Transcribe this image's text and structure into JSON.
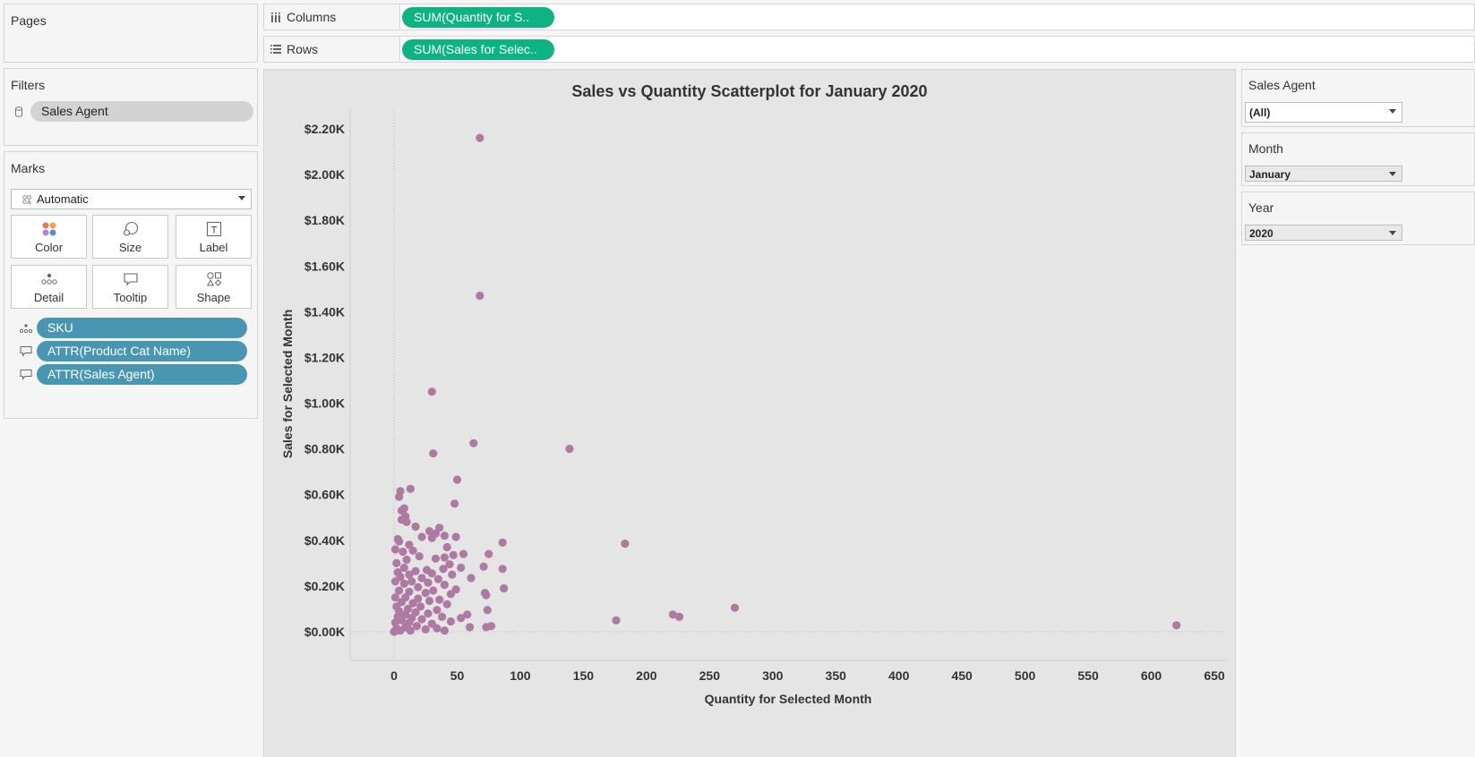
{
  "pages": {
    "title": "Pages"
  },
  "filters": {
    "title": "Filters",
    "items": [
      "Sales Agent"
    ]
  },
  "marks": {
    "title": "Marks",
    "type": "Automatic",
    "buttons": [
      "Color",
      "Size",
      "Label",
      "Detail",
      "Tooltip",
      "Shape"
    ],
    "fields": [
      "SKU",
      "ATTR(Product Cat Name)",
      "ATTR(Sales Agent)"
    ]
  },
  "shelves": {
    "columns_label": "Columns",
    "columns_pill": "SUM(Quantity for S..",
    "rows_label": "Rows",
    "rows_pill": "SUM(Sales for Selec.."
  },
  "quick_filters": [
    {
      "title": "Sales Agent",
      "value": "(All)"
    },
    {
      "title": "Month",
      "value": "January"
    },
    {
      "title": "Year",
      "value": "2020"
    }
  ],
  "colors": {
    "mark": "#ae7aa1",
    "pill_blue": "#4996b2",
    "pill_green": "#0db481",
    "plot_bg": "#e5e5e5"
  },
  "icons": [
    "columns-icon",
    "rows-icon",
    "database-icon",
    "automatic-marks-icon",
    "color-icon",
    "size-icon",
    "label-icon",
    "detail-icon",
    "tooltip-icon",
    "shape-icon"
  ],
  "chart_data": {
    "type": "scatter",
    "title": "Sales vs Quantity Scatterplot for January 2020",
    "xlabel": "Quantity for Selected Month",
    "ylabel": "Sales for Selected Month",
    "xlim": [
      -33,
      651
    ],
    "ylim": [
      -120,
      2290
    ],
    "x_ticks": [
      0,
      50,
      100,
      150,
      200,
      250,
      300,
      350,
      400,
      450,
      500,
      550,
      600,
      650
    ],
    "y_ticks": [
      0,
      200,
      400,
      600,
      800,
      1000,
      1200,
      1400,
      1600,
      1800,
      2000,
      2200
    ],
    "y_tick_labels": [
      "$0.00K",
      "$0.20K",
      "$0.40K",
      "$0.60K",
      "$0.80K",
      "$1.00K",
      "$1.20K",
      "$1.40K",
      "$1.60K",
      "$1.80K",
      "$2.00K",
      "$2.20K"
    ],
    "grid": false,
    "legend": "none",
    "points": [
      [
        68,
        2160
      ],
      [
        68,
        1470
      ],
      [
        30,
        1050
      ],
      [
        63,
        825
      ],
      [
        139,
        800
      ],
      [
        31,
        780
      ],
      [
        50,
        665
      ],
      [
        13,
        625
      ],
      [
        5,
        615
      ],
      [
        4,
        590
      ],
      [
        48,
        560
      ],
      [
        8,
        540
      ],
      [
        6,
        530
      ],
      [
        9,
        505
      ],
      [
        6,
        490
      ],
      [
        10,
        480
      ],
      [
        36,
        455
      ],
      [
        17,
        460
      ],
      [
        28,
        440
      ],
      [
        33,
        430
      ],
      [
        40,
        420
      ],
      [
        49,
        415
      ],
      [
        22,
        415
      ],
      [
        3,
        405
      ],
      [
        30,
        410
      ],
      [
        4,
        395
      ],
      [
        86,
        390
      ],
      [
        183,
        385
      ],
      [
        12,
        380
      ],
      [
        42,
        370
      ],
      [
        1,
        360
      ],
      [
        15,
        355
      ],
      [
        7,
        350
      ],
      [
        75,
        340
      ],
      [
        55,
        340
      ],
      [
        47,
        335
      ],
      [
        20,
        330
      ],
      [
        40,
        325
      ],
      [
        33,
        320
      ],
      [
        10,
        315
      ],
      [
        2,
        300
      ],
      [
        44,
        295
      ],
      [
        71,
        285
      ],
      [
        53,
        280
      ],
      [
        8,
        280
      ],
      [
        39,
        275
      ],
      [
        86,
        275
      ],
      [
        26,
        270
      ],
      [
        17,
        265
      ],
      [
        3,
        260
      ],
      [
        30,
        255
      ],
      [
        46,
        250
      ],
      [
        12,
        250
      ],
      [
        61,
        235
      ],
      [
        5,
        240
      ],
      [
        22,
        235
      ],
      [
        35,
        230
      ],
      [
        1,
        220
      ],
      [
        14,
        220
      ],
      [
        27,
        215
      ],
      [
        8,
        210
      ],
      [
        40,
        205
      ],
      [
        87,
        190
      ],
      [
        19,
        195
      ],
      [
        49,
        185
      ],
      [
        4,
        180
      ],
      [
        31,
        180
      ],
      [
        72,
        170
      ],
      [
        12,
        175
      ],
      [
        25,
        170
      ],
      [
        45,
        165
      ],
      [
        73,
        160
      ],
      [
        1,
        150
      ],
      [
        9,
        150
      ],
      [
        19,
        145
      ],
      [
        36,
        140
      ],
      [
        28,
        135
      ],
      [
        6,
        130
      ],
      [
        15,
        125
      ],
      [
        42,
        120
      ],
      [
        2,
        110
      ],
      [
        270,
        105
      ],
      [
        21,
        110
      ],
      [
        11,
        100
      ],
      [
        34,
        95
      ],
      [
        74,
        95
      ],
      [
        4,
        90
      ],
      [
        17,
        85
      ],
      [
        27,
        80
      ],
      [
        221,
        75
      ],
      [
        58,
        75
      ],
      [
        9,
        75
      ],
      [
        226,
        65
      ],
      [
        3,
        65
      ],
      [
        53,
        60
      ],
      [
        38,
        65
      ],
      [
        14,
        60
      ],
      [
        22,
        55
      ],
      [
        176,
        50
      ],
      [
        6,
        50
      ],
      [
        45,
        45
      ],
      [
        1,
        40
      ],
      [
        12,
        40
      ],
      [
        30,
        35
      ],
      [
        620,
        28
      ],
      [
        60,
        20
      ],
      [
        77,
        25
      ],
      [
        73,
        20
      ],
      [
        18,
        25
      ],
      [
        9,
        20
      ],
      [
        2,
        15
      ],
      [
        40,
        5
      ],
      [
        25,
        10
      ],
      [
        34,
        15
      ],
      [
        5,
        5
      ],
      [
        13,
        5
      ],
      [
        0,
        0
      ],
      [
        1,
        3
      ],
      [
        3,
        8
      ]
    ]
  }
}
